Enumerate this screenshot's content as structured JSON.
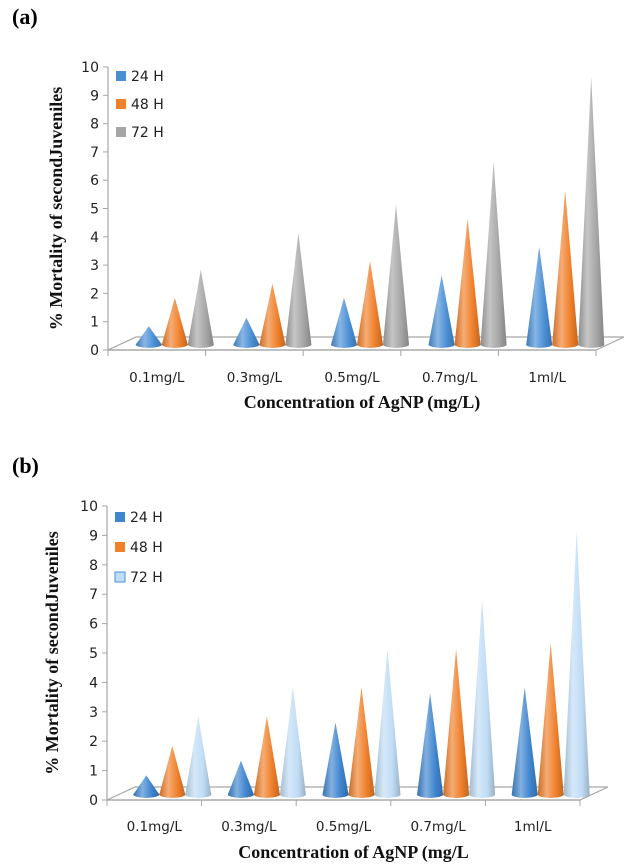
{
  "chart_data": [
    {
      "panel_label": "(a)",
      "type": "bar",
      "bar_shape": "3d-cone",
      "title": "",
      "xlabel": "Concentration of AgNP (mg/L)",
      "ylabel": "% Mortality of secondJuveniles",
      "ylim": [
        0,
        10
      ],
      "yticks": [
        "0",
        "1",
        "2",
        "3",
        "4",
        "5",
        "6",
        "7",
        "8",
        "9",
        "10"
      ],
      "categories": [
        "0.1mg/L",
        "0.3mg/L",
        "0.5mg/L",
        "0.7mg/L",
        "1ml/L"
      ],
      "legend_position": "top-left",
      "grid": false,
      "series": [
        {
          "name": "24 H",
          "color": "#4a8fd6",
          "values": [
            0.7,
            1.0,
            1.7,
            2.5,
            3.5
          ]
        },
        {
          "name": "48 H",
          "color": "#f0802a",
          "values": [
            1.7,
            2.2,
            3.0,
            4.5,
            5.5
          ]
        },
        {
          "name": "72 H",
          "color": "#a6a6a6",
          "values": [
            2.7,
            4.0,
            5.0,
            6.5,
            9.5
          ]
        }
      ]
    },
    {
      "panel_label": "(b)",
      "type": "bar",
      "bar_shape": "3d-cone",
      "title": "",
      "xlabel": "Concentration of AgNP (mg/L",
      "ylabel": "% Mortality of secondJuveniles",
      "ylim": [
        0,
        10
      ],
      "yticks": [
        "0",
        "1",
        "2",
        "3",
        "4",
        "5",
        "6",
        "7",
        "8",
        "9",
        "10"
      ],
      "categories": [
        "0.1mg/L",
        "0.3mg/L",
        "0.5mg/L",
        "0.7mg/L",
        "1ml/L"
      ],
      "legend_position": "top-left",
      "grid": false,
      "series": [
        {
          "name": "24 H",
          "color": "#3f85cf",
          "values": [
            0.7,
            1.2,
            2.5,
            3.5,
            3.7
          ]
        },
        {
          "name": "48 H",
          "color": "#f0802a",
          "values": [
            1.7,
            2.7,
            3.7,
            5.0,
            5.2
          ]
        },
        {
          "name": "72 H",
          "color": "#bfdcf5",
          "values": [
            2.7,
            3.7,
            5.0,
            6.7,
            9.0
          ]
        }
      ]
    }
  ]
}
